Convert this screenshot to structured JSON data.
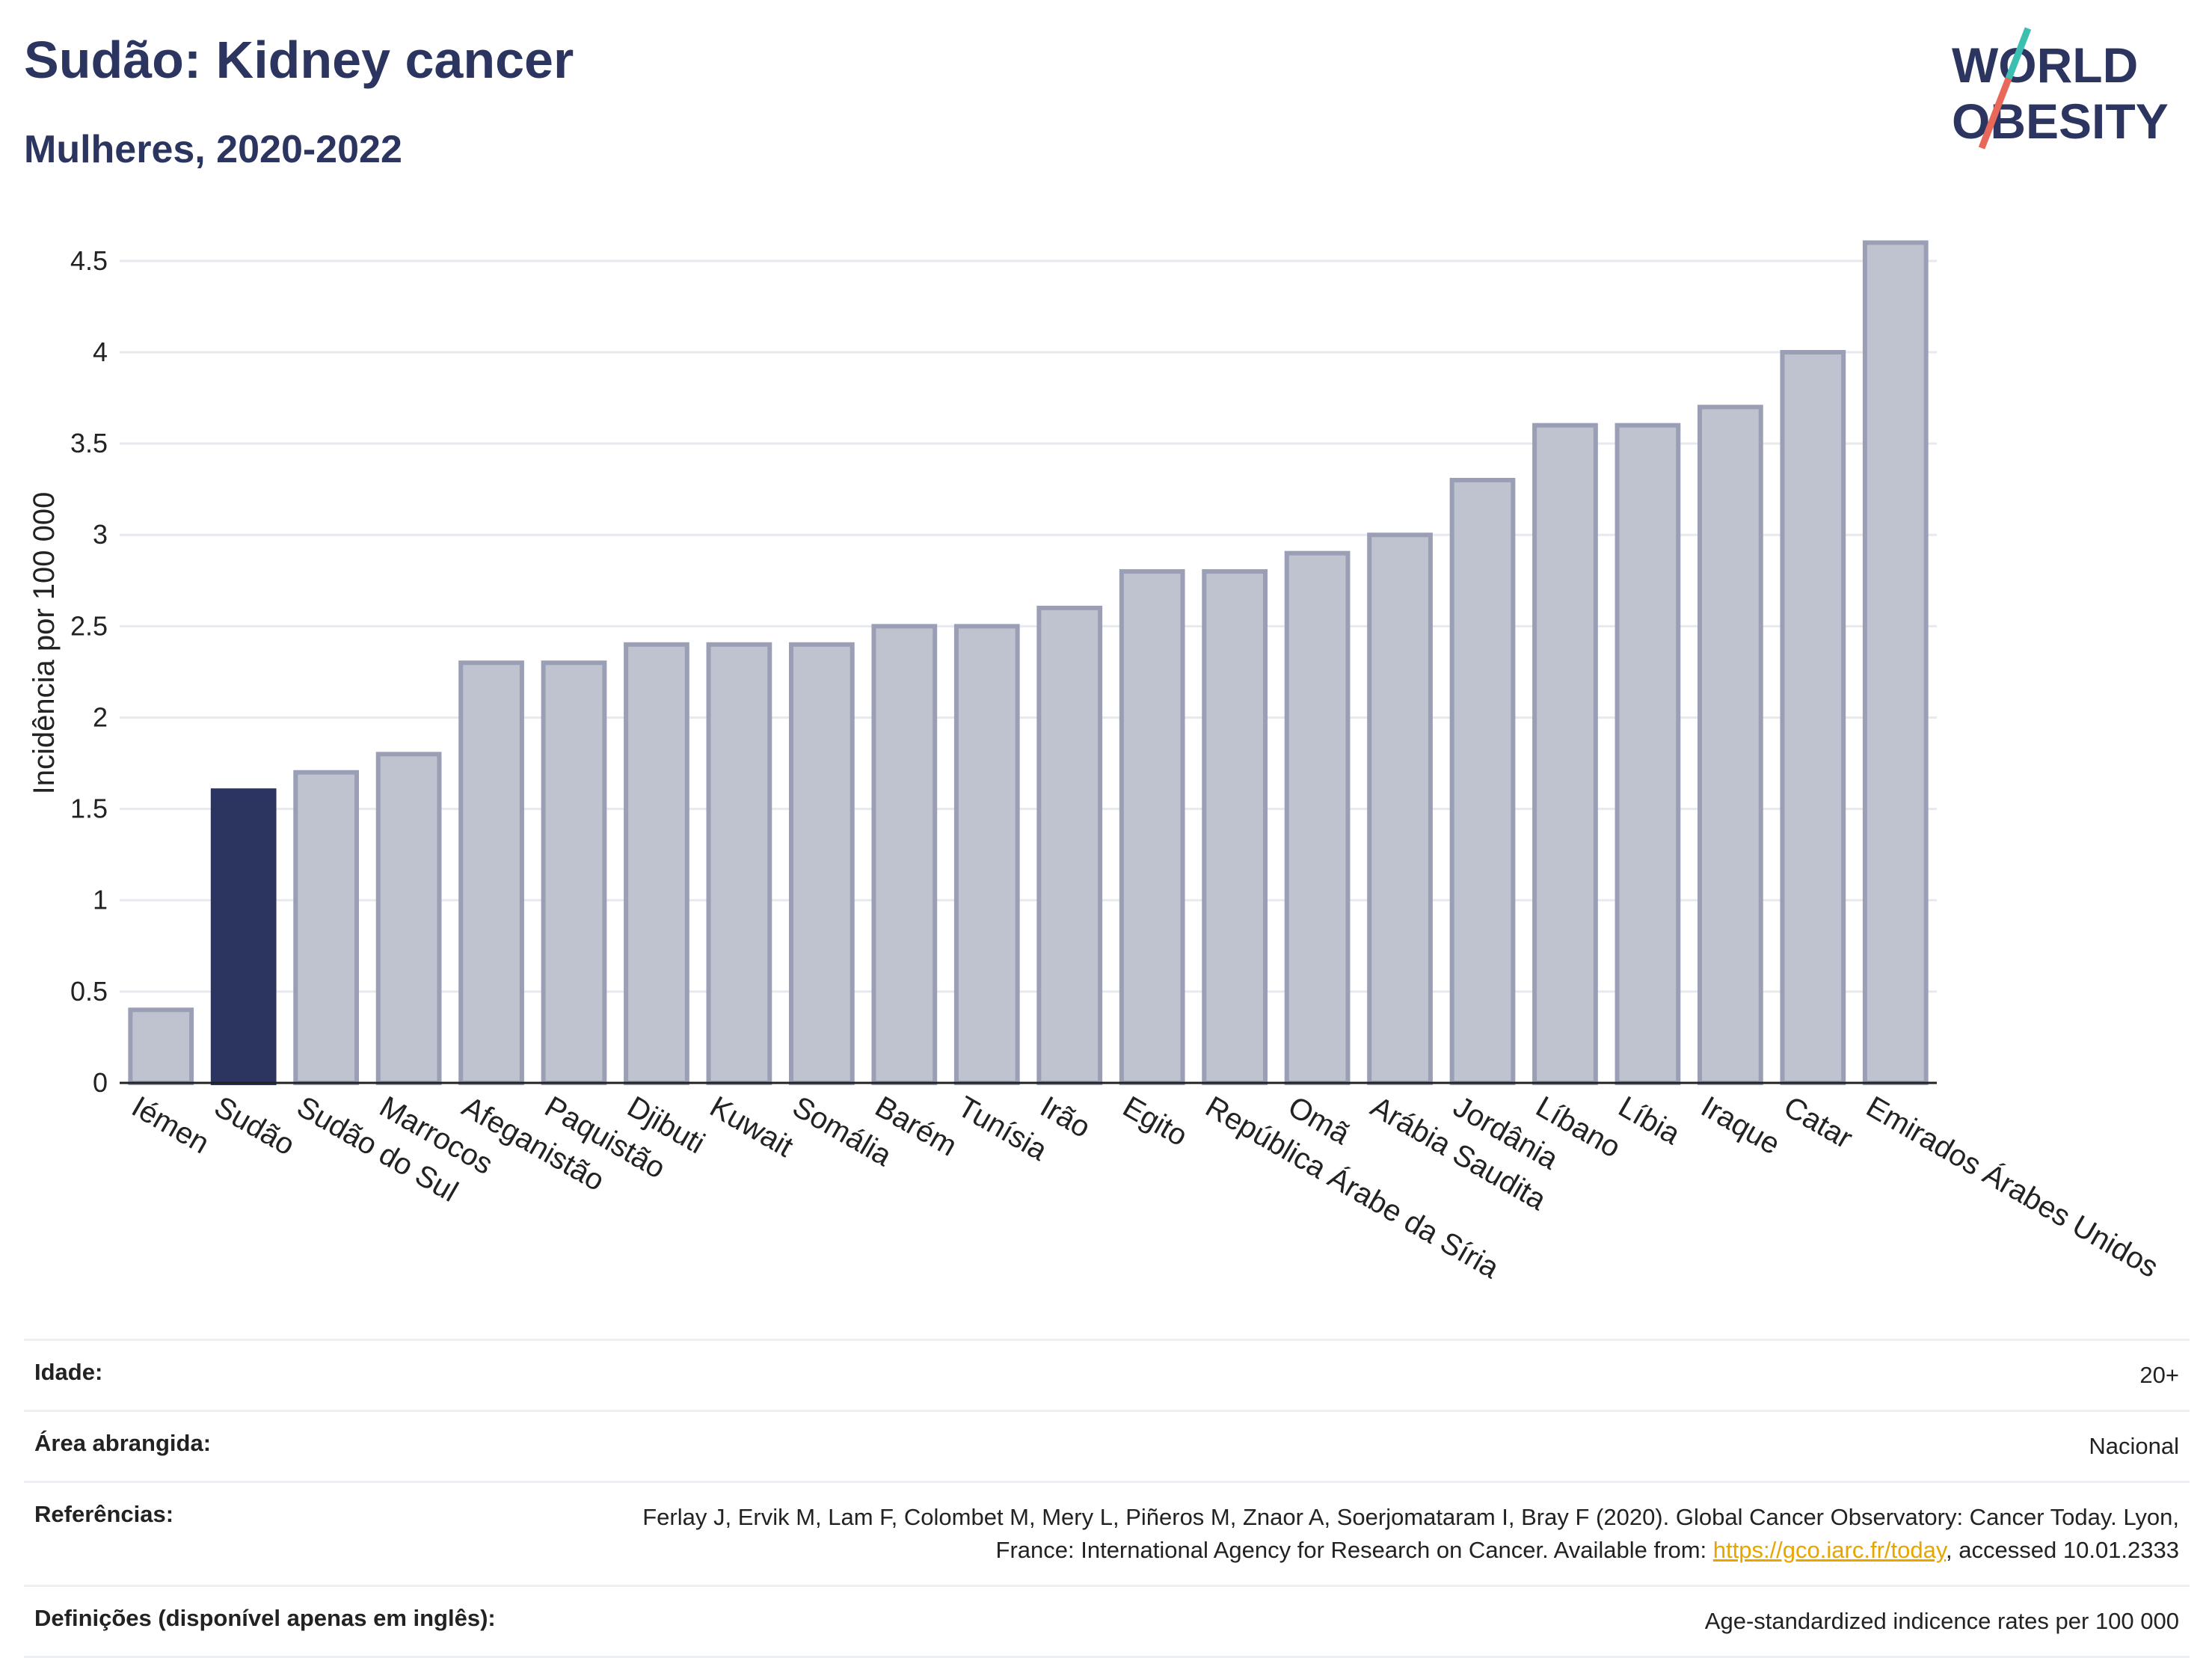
{
  "header": {
    "title": "Sudão: Kidney cancer",
    "subtitle": "Mulheres, 2020-2022"
  },
  "logo": {
    "line1": "WORLD",
    "line2": "OBESITY"
  },
  "colors": {
    "highlight_bar": "#2b3560",
    "default_bar": "#bfc2cf",
    "bar_edge": "#9a9fb6",
    "title": "#2b3560",
    "logo_accent_teal": "#3bbfb0",
    "logo_accent_red": "#e8685a",
    "link": "#e8a500"
  },
  "chart_data": {
    "type": "bar",
    "ylabel": "Incidência por 100 000",
    "ylim": [
      0,
      4.7
    ],
    "yticks": [
      0,
      0.5,
      1,
      1.5,
      2,
      2.5,
      3,
      3.5,
      4,
      4.5
    ],
    "ytick_labels": [
      "0",
      "0.5",
      "1",
      "1.5",
      "2",
      "2.5",
      "3",
      "3.5",
      "4",
      "4.5"
    ],
    "grid": true,
    "highlight": "Sudão",
    "categories": [
      "Iémen",
      "Sudão",
      "Sudão do Sul",
      "Marrocos",
      "Afeganistão",
      "Paquistão",
      "Djibuti",
      "Kuwait",
      "Somália",
      "Barém",
      "Tunísia",
      "Irão",
      "Egito",
      "República Árabe da Síria",
      "Omã",
      "Arábia Saudita",
      "Jordânia",
      "Líbano",
      "Líbia",
      "Iraque",
      "Catar",
      "Emirados Árabes Unidos"
    ],
    "values": [
      0.4,
      1.6,
      1.7,
      1.8,
      2.3,
      2.3,
      2.4,
      2.4,
      2.4,
      2.5,
      2.5,
      2.6,
      2.8,
      2.8,
      2.9,
      3.0,
      3.3,
      3.6,
      3.6,
      3.7,
      4.0,
      4.6
    ]
  },
  "meta": {
    "age_label": "Idade:",
    "age_value": "20+",
    "area_label": "Área abrangida:",
    "area_value": "Nacional",
    "ref_label": "Referências:",
    "ref_text_1": "Ferlay J, Ervik M, Lam F, Colombet M, Mery L, Piñeros M, Znaor A, Soerjomataram I, Bray F (2020). Global Cancer Observatory: Cancer Today. Lyon, France: International Agency for Research on Cancer. Available from: ",
    "ref_link": "https://gco.iarc.fr/today",
    "ref_text_2": ", accessed 10.01.2333",
    "def_label": "Definições (disponível apenas em inglês):",
    "def_value": "Age-standardized indicence rates per 100 000"
  }
}
